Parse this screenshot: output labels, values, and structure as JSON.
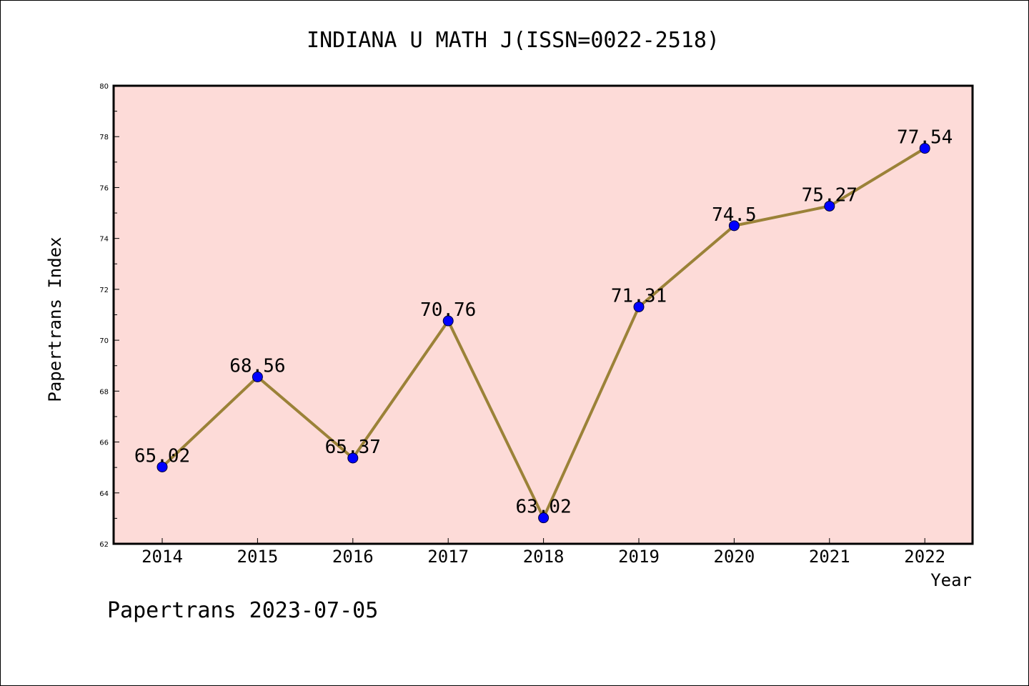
{
  "chart_data": {
    "type": "line",
    "title": "INDIANA U MATH J(ISSN=0022-2518)",
    "xlabel": "Year",
    "ylabel": "Papertrans Index",
    "categories": [
      "2014",
      "2015",
      "2016",
      "2017",
      "2018",
      "2019",
      "2020",
      "2021",
      "2022"
    ],
    "series": [
      {
        "values": [
          65.02,
          68.56,
          65.37,
          70.76,
          63.02,
          71.31,
          74.5,
          75.27,
          77.54
        ]
      }
    ],
    "data_labels": [
      "65.02",
      "68.56",
      "65.37",
      "70.76",
      "63.02",
      "71.31",
      "74.5",
      "75.27",
      "77.54"
    ],
    "ylim": [
      62,
      80
    ],
    "yticks": [
      "62",
      "64",
      "66",
      "68",
      "70",
      "72",
      "74",
      "76",
      "78",
      "80"
    ],
    "grid": false,
    "colors": {
      "plot_background": "#fddbd8",
      "line": "#9b8238",
      "marker": "#0000ff"
    }
  },
  "footer": "Papertrans 2023-07-05"
}
